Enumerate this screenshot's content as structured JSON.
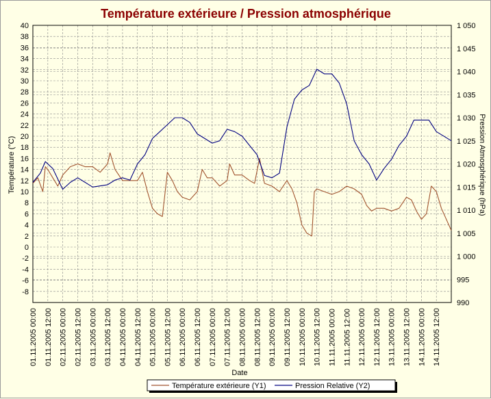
{
  "chart_data": {
    "type": "line",
    "title": "Température extérieure / Pression atmosphérique",
    "xlabel": "Date",
    "ylabel_left": "Température (°C)",
    "ylabel_right": "Pression Atmosphérique (hPa)",
    "ylim_left": [
      -10,
      40
    ],
    "ylim_right": [
      990,
      1050
    ],
    "xlim": [
      "01.11.2005 00:00",
      "14.11.2005 23:59"
    ],
    "grid": true,
    "legend_position": "bottom-center",
    "y_left_ticks": [
      "40",
      "38",
      "36",
      "34",
      "32",
      "30",
      "28",
      "26",
      "24",
      "22",
      "20",
      "18",
      "16",
      "14",
      "12",
      "10",
      "8",
      "6",
      "4",
      "2",
      "0",
      "-2",
      "-4",
      "-6",
      "-8"
    ],
    "y_right_ticks": [
      "1 050",
      "1 045",
      "1 040",
      "1 035",
      "1 030",
      "1 025",
      "1 020",
      "1 015",
      "1 010",
      "1 005",
      "1 000",
      "995",
      "990"
    ],
    "x_ticks": [
      "01.11.2005 00:00",
      "01.11.2005 12:00",
      "02.11.2005 00:00",
      "02.11.2005 12:00",
      "03.11.2005 00:00",
      "03.11.2005 12:00",
      "04.11.2005 00:00",
      "04.11.2005 12:00",
      "05.11.2005 00:00",
      "05.11.2005 12:00",
      "06.11.2005 00:00",
      "06.11.2005 12:00",
      "07.11.2005 00:00",
      "07.11.2005 12:00",
      "08.11.2005 00:00",
      "08.11.2005 12:00",
      "09.11.2005 00:00",
      "09.11.2005 12:00",
      "10.11.2005 00:00",
      "10.11.2005 12:00",
      "11.11.2005 00:00",
      "11.11.2005 12:00",
      "12.11.2005 00:00",
      "12.11.2005 12:00",
      "13.11.2005 00:00",
      "13.11.2005 12:00",
      "14.11.2005 00:00",
      "14.11.2005 12:00"
    ],
    "series": [
      {
        "name": "Température extérieure (Y1)",
        "axis": "left",
        "color": "#a0522d",
        "points": [
          [
            "01.11.2005 00:00",
            11.5
          ],
          [
            "01.11.2005 04:00",
            12.5
          ],
          [
            "01.11.2005 08:00",
            10.0
          ],
          [
            "01.11.2005 10:00",
            14.5
          ],
          [
            "01.11.2005 12:00",
            14.0
          ],
          [
            "01.11.2005 16:00",
            12.5
          ],
          [
            "01.11.2005 20:00",
            11.0
          ],
          [
            "02.11.2005 00:00",
            13.0
          ],
          [
            "02.11.2005 06:00",
            14.5
          ],
          [
            "02.11.2005 12:00",
            15.0
          ],
          [
            "02.11.2005 18:00",
            14.5
          ],
          [
            "03.11.2005 00:00",
            14.5
          ],
          [
            "03.11.2005 06:00",
            13.5
          ],
          [
            "03.11.2005 12:00",
            15.0
          ],
          [
            "03.11.2005 14:00",
            17.0
          ],
          [
            "03.11.2005 18:00",
            14.0
          ],
          [
            "04.11.2005 00:00",
            12.0
          ],
          [
            "04.11.2005 06:00",
            12.0
          ],
          [
            "04.11.2005 12:00",
            12.0
          ],
          [
            "04.11.2005 16:00",
            13.5
          ],
          [
            "04.11.2005 20:00",
            10.0
          ],
          [
            "05.11.2005 00:00",
            7.0
          ],
          [
            "05.11.2005 04:00",
            6.0
          ],
          [
            "05.11.2005 08:00",
            5.5
          ],
          [
            "05.11.2005 12:00",
            13.5
          ],
          [
            "05.11.2005 16:00",
            12.0
          ],
          [
            "05.11.2005 20:00",
            10.0
          ],
          [
            "06.11.2005 00:00",
            9.0
          ],
          [
            "06.11.2005 06:00",
            8.5
          ],
          [
            "06.11.2005 12:00",
            10.0
          ],
          [
            "06.11.2005 16:00",
            14.0
          ],
          [
            "06.11.2005 20:00",
            12.5
          ],
          [
            "07.11.2005 00:00",
            12.5
          ],
          [
            "07.11.2005 06:00",
            11.0
          ],
          [
            "07.11.2005 12:00",
            12.0
          ],
          [
            "07.11.2005 14:00",
            15.0
          ],
          [
            "07.11.2005 18:00",
            13.0
          ],
          [
            "08.11.2005 00:00",
            13.0
          ],
          [
            "08.11.2005 06:00",
            12.0
          ],
          [
            "08.11.2005 10:00",
            11.5
          ],
          [
            "08.11.2005 14:00",
            16.0
          ],
          [
            "08.11.2005 18:00",
            11.5
          ],
          [
            "09.11.2005 00:00",
            11.0
          ],
          [
            "09.11.2005 06:00",
            10.0
          ],
          [
            "09.11.2005 12:00",
            12.0
          ],
          [
            "09.11.2005 16:00",
            10.5
          ],
          [
            "09.11.2005 20:00",
            8.0
          ],
          [
            "10.11.2005 00:00",
            4.0
          ],
          [
            "10.11.2005 04:00",
            2.5
          ],
          [
            "10.11.2005 08:00",
            2.0
          ],
          [
            "10.11.2005 10:00",
            10.0
          ],
          [
            "10.11.2005 12:00",
            10.5
          ],
          [
            "10.11.2005 18:00",
            10.0
          ],
          [
            "11.11.2005 00:00",
            9.5
          ],
          [
            "11.11.2005 06:00",
            10.0
          ],
          [
            "11.11.2005 12:00",
            11.0
          ],
          [
            "11.11.2005 18:00",
            10.5
          ],
          [
            "12.11.2005 00:00",
            9.5
          ],
          [
            "12.11.2005 04:00",
            7.5
          ],
          [
            "12.11.2005 08:00",
            6.5
          ],
          [
            "12.11.2005 12:00",
            7.0
          ],
          [
            "12.11.2005 18:00",
            7.0
          ],
          [
            "13.11.2005 00:00",
            6.5
          ],
          [
            "13.11.2005 06:00",
            7.0
          ],
          [
            "13.11.2005 12:00",
            9.0
          ],
          [
            "13.11.2005 16:00",
            8.5
          ],
          [
            "13.11.2005 20:00",
            6.5
          ],
          [
            "14.11.2005 00:00",
            5.0
          ],
          [
            "14.11.2005 04:00",
            6.0
          ],
          [
            "14.11.2005 08:00",
            11.0
          ],
          [
            "14.11.2005 12:00",
            10.0
          ],
          [
            "14.11.2005 16:00",
            7.0
          ],
          [
            "14.11.2005 23:59",
            3.0
          ]
        ]
      },
      {
        "name": "Pression Relative (Y2)",
        "axis": "right",
        "color": "#000080",
        "points": [
          [
            "01.11.2005 00:00",
            1016
          ],
          [
            "01.11.2005 06:00",
            1018
          ],
          [
            "01.11.2005 10:00",
            1020.5
          ],
          [
            "01.11.2005 16:00",
            1019
          ],
          [
            "02.11.2005 00:00",
            1014.5
          ],
          [
            "02.11.2005 06:00",
            1016
          ],
          [
            "02.11.2005 12:00",
            1017
          ],
          [
            "02.11.2005 18:00",
            1016
          ],
          [
            "03.11.2005 00:00",
            1015
          ],
          [
            "03.11.2005 12:00",
            1015.5
          ],
          [
            "03.11.2005 18:00",
            1016.5
          ],
          [
            "04.11.2005 00:00",
            1017
          ],
          [
            "04.11.2005 06:00",
            1016.5
          ],
          [
            "04.11.2005 12:00",
            1020
          ],
          [
            "04.11.2005 18:00",
            1022
          ],
          [
            "05.11.2005 00:00",
            1025.5
          ],
          [
            "05.11.2005 06:00",
            1027
          ],
          [
            "05.11.2005 12:00",
            1028.5
          ],
          [
            "05.11.2005 18:00",
            1030
          ],
          [
            "06.11.2005 00:00",
            1030
          ],
          [
            "06.11.2005 06:00",
            1029
          ],
          [
            "06.11.2005 12:00",
            1026.5
          ],
          [
            "06.11.2005 18:00",
            1025.5
          ],
          [
            "07.11.2005 00:00",
            1024.5
          ],
          [
            "07.11.2005 06:00",
            1025
          ],
          [
            "07.11.2005 12:00",
            1027.5
          ],
          [
            "07.11.2005 18:00",
            1027
          ],
          [
            "08.11.2005 00:00",
            1026
          ],
          [
            "08.11.2005 06:00",
            1024
          ],
          [
            "08.11.2005 12:00",
            1022
          ],
          [
            "08.11.2005 18:00",
            1017.5
          ],
          [
            "09.11.2005 00:00",
            1017
          ],
          [
            "09.11.2005 06:00",
            1018
          ],
          [
            "09.11.2005 12:00",
            1028
          ],
          [
            "09.11.2005 18:00",
            1034
          ],
          [
            "10.11.2005 00:00",
            1036
          ],
          [
            "10.11.2005 06:00",
            1037
          ],
          [
            "10.11.2005 12:00",
            1040.5
          ],
          [
            "10.11.2005 18:00",
            1039.5
          ],
          [
            "11.11.2005 00:00",
            1039.5
          ],
          [
            "11.11.2005 06:00",
            1037.5
          ],
          [
            "11.11.2005 12:00",
            1033
          ],
          [
            "11.11.2005 18:00",
            1025
          ],
          [
            "12.11.2005 00:00",
            1022
          ],
          [
            "12.11.2005 06:00",
            1020
          ],
          [
            "12.11.2005 12:00",
            1016.5
          ],
          [
            "12.11.2005 18:00",
            1019
          ],
          [
            "13.11.2005 00:00",
            1021
          ],
          [
            "13.11.2005 06:00",
            1024
          ],
          [
            "13.11.2005 12:00",
            1026
          ],
          [
            "13.11.2005 18:00",
            1029.5
          ],
          [
            "14.11.2005 00:00",
            1029.5
          ],
          [
            "14.11.2005 06:00",
            1029.5
          ],
          [
            "14.11.2005 12:00",
            1027
          ],
          [
            "14.11.2005 23:59",
            1025
          ]
        ]
      }
    ]
  }
}
